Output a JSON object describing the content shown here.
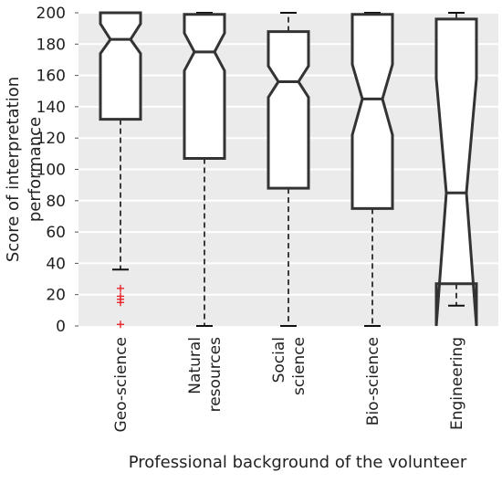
{
  "chart_data": {
    "type": "boxplot",
    "xlabel": "Professional background of the volunteer",
    "ylabel": "Score of interpretation performance",
    "ylim": [
      0,
      200
    ],
    "yticks": [
      0,
      20,
      40,
      60,
      80,
      100,
      120,
      140,
      160,
      180,
      200
    ],
    "grid": true,
    "notched": true,
    "categories": [
      "Geo-science",
      "Natural resources",
      "Social science",
      "Bio-science",
      "Engineering"
    ],
    "category_lines": [
      [
        "Geo-science"
      ],
      [
        "Natural",
        "resources"
      ],
      [
        "Social",
        "science"
      ],
      [
        "Bio-science"
      ],
      [
        "Engineering"
      ]
    ],
    "boxes": [
      {
        "q1": 132,
        "median": 183,
        "q3": 200,
        "whisker_low": 36,
        "whisker_high": 200,
        "notch_low": 174,
        "notch_high": 193,
        "outliers": [
          24,
          19,
          17,
          15,
          1
        ]
      },
      {
        "q1": 107,
        "median": 175,
        "q3": 199,
        "whisker_low": 0,
        "whisker_high": 200,
        "notch_low": 163,
        "notch_high": 187,
        "outliers": []
      },
      {
        "q1": 88,
        "median": 156,
        "q3": 188,
        "whisker_low": 0,
        "whisker_high": 200,
        "notch_low": 146,
        "notch_high": 166,
        "outliers": []
      },
      {
        "q1": 75,
        "median": 145,
        "q3": 199,
        "whisker_low": 0,
        "whisker_high": 200,
        "notch_low": 122,
        "notch_high": 167,
        "outliers": []
      },
      {
        "q1": 27,
        "median": 85,
        "q3": 196,
        "whisker_low": 13,
        "whisker_high": 200,
        "notch_low": 0,
        "notch_high": 158,
        "outliers": []
      }
    ],
    "colors": {
      "plot_background": "#ebebeb",
      "gridline": "#ffffff",
      "box_stroke": "#333333",
      "box_fill": "#ffffff",
      "outlier": "#e8262b"
    }
  }
}
